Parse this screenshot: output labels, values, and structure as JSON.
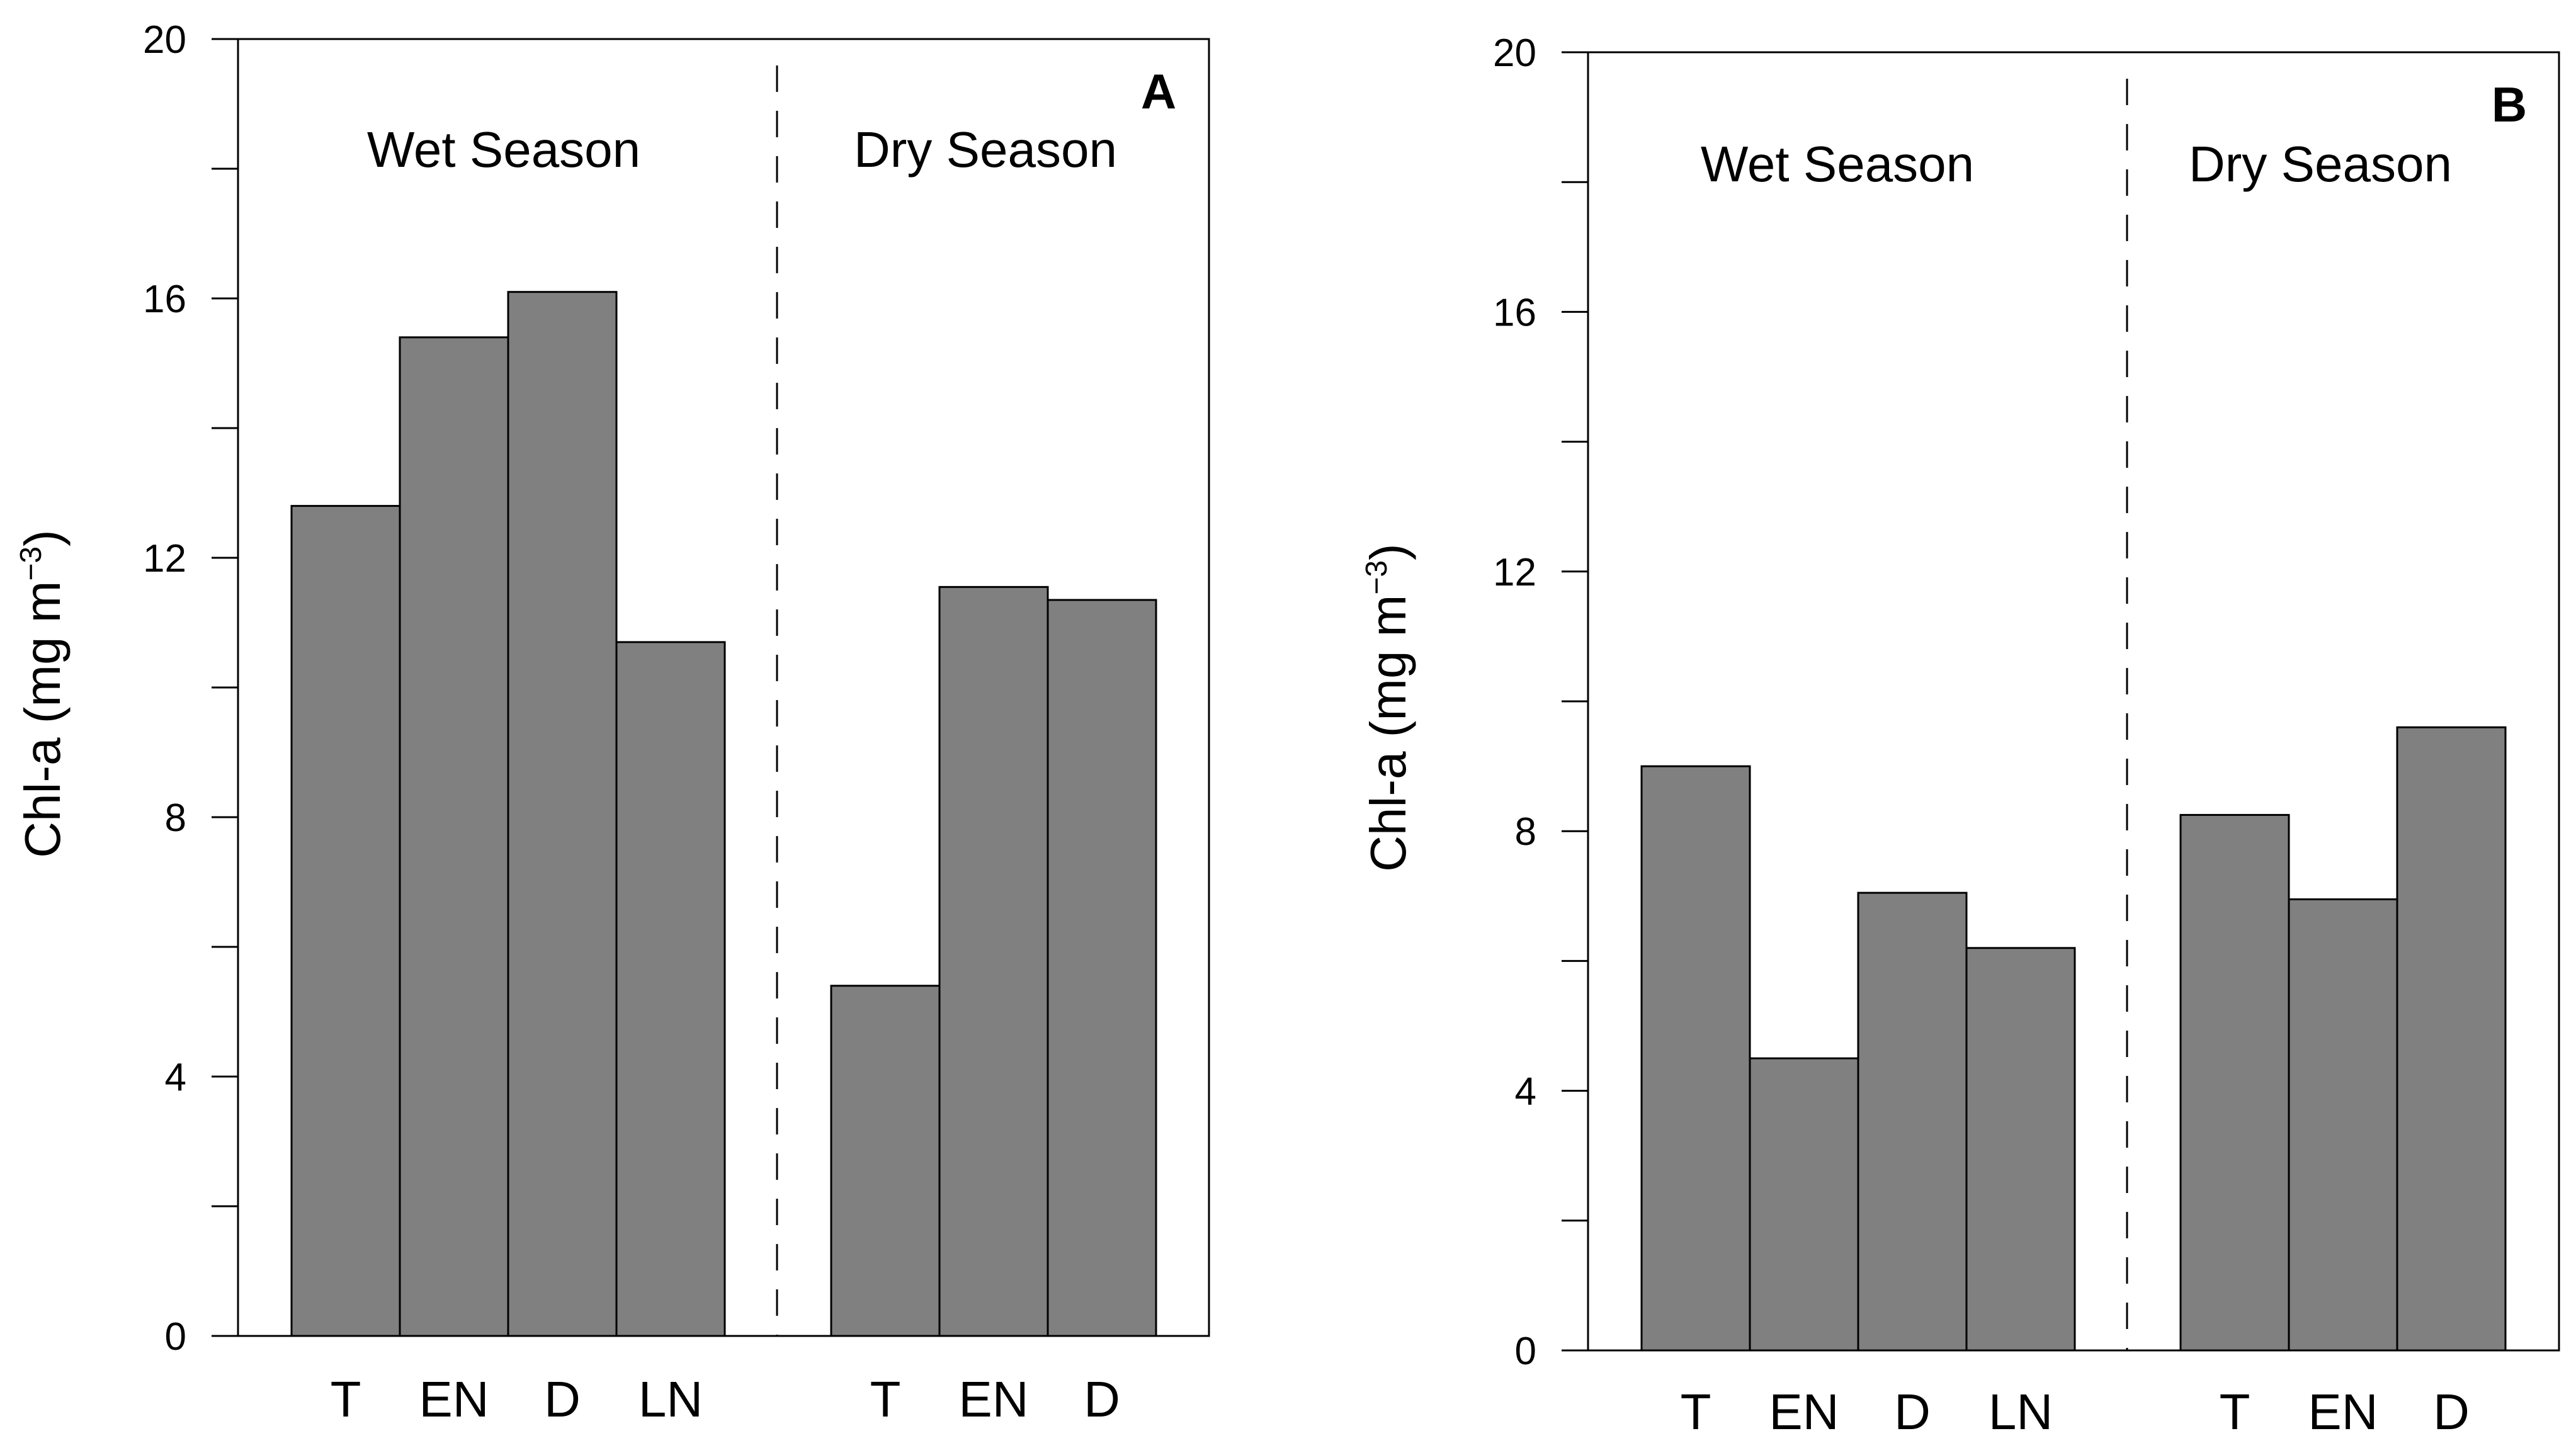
{
  "chart_data": [
    {
      "type": "bar",
      "panel_label": "A",
      "ylabel": "Chl-a (mg m",
      "ylabel_superscript": "−3",
      "ylabel_close": ")",
      "ylim": [
        0,
        20
      ],
      "yticks": [
        0,
        4,
        8,
        12,
        16,
        20
      ],
      "yticks_text": [
        "0",
        "4",
        "8",
        "12",
        "16",
        "20"
      ],
      "groups": [
        {
          "name": "Wet Season",
          "categories": [
            "T",
            "EN",
            "D",
            "LN"
          ],
          "values": [
            12.8,
            15.4,
            16.1,
            10.7
          ]
        },
        {
          "name": "Dry Season",
          "categories": [
            "T",
            "EN",
            "D"
          ],
          "values": [
            5.4,
            11.55,
            11.35
          ]
        }
      ]
    },
    {
      "type": "bar",
      "panel_label": "B",
      "ylabel": "Chl-a (mg m",
      "ylabel_superscript": "−3",
      "ylabel_close": ")",
      "ylim": [
        0,
        20
      ],
      "yticks": [
        0,
        4,
        8,
        12,
        16,
        20
      ],
      "yticks_text": [
        "0",
        "4",
        "8",
        "12",
        "16",
        "20"
      ],
      "groups": [
        {
          "name": "Wet Season",
          "categories": [
            "T",
            "EN",
            "D",
            "LN"
          ],
          "values": [
            9.0,
            4.5,
            7.05,
            6.2
          ]
        },
        {
          "name": "Dry Season",
          "categories": [
            "T",
            "EN",
            "D"
          ],
          "values": [
            8.25,
            6.95,
            9.6
          ]
        }
      ]
    }
  ]
}
